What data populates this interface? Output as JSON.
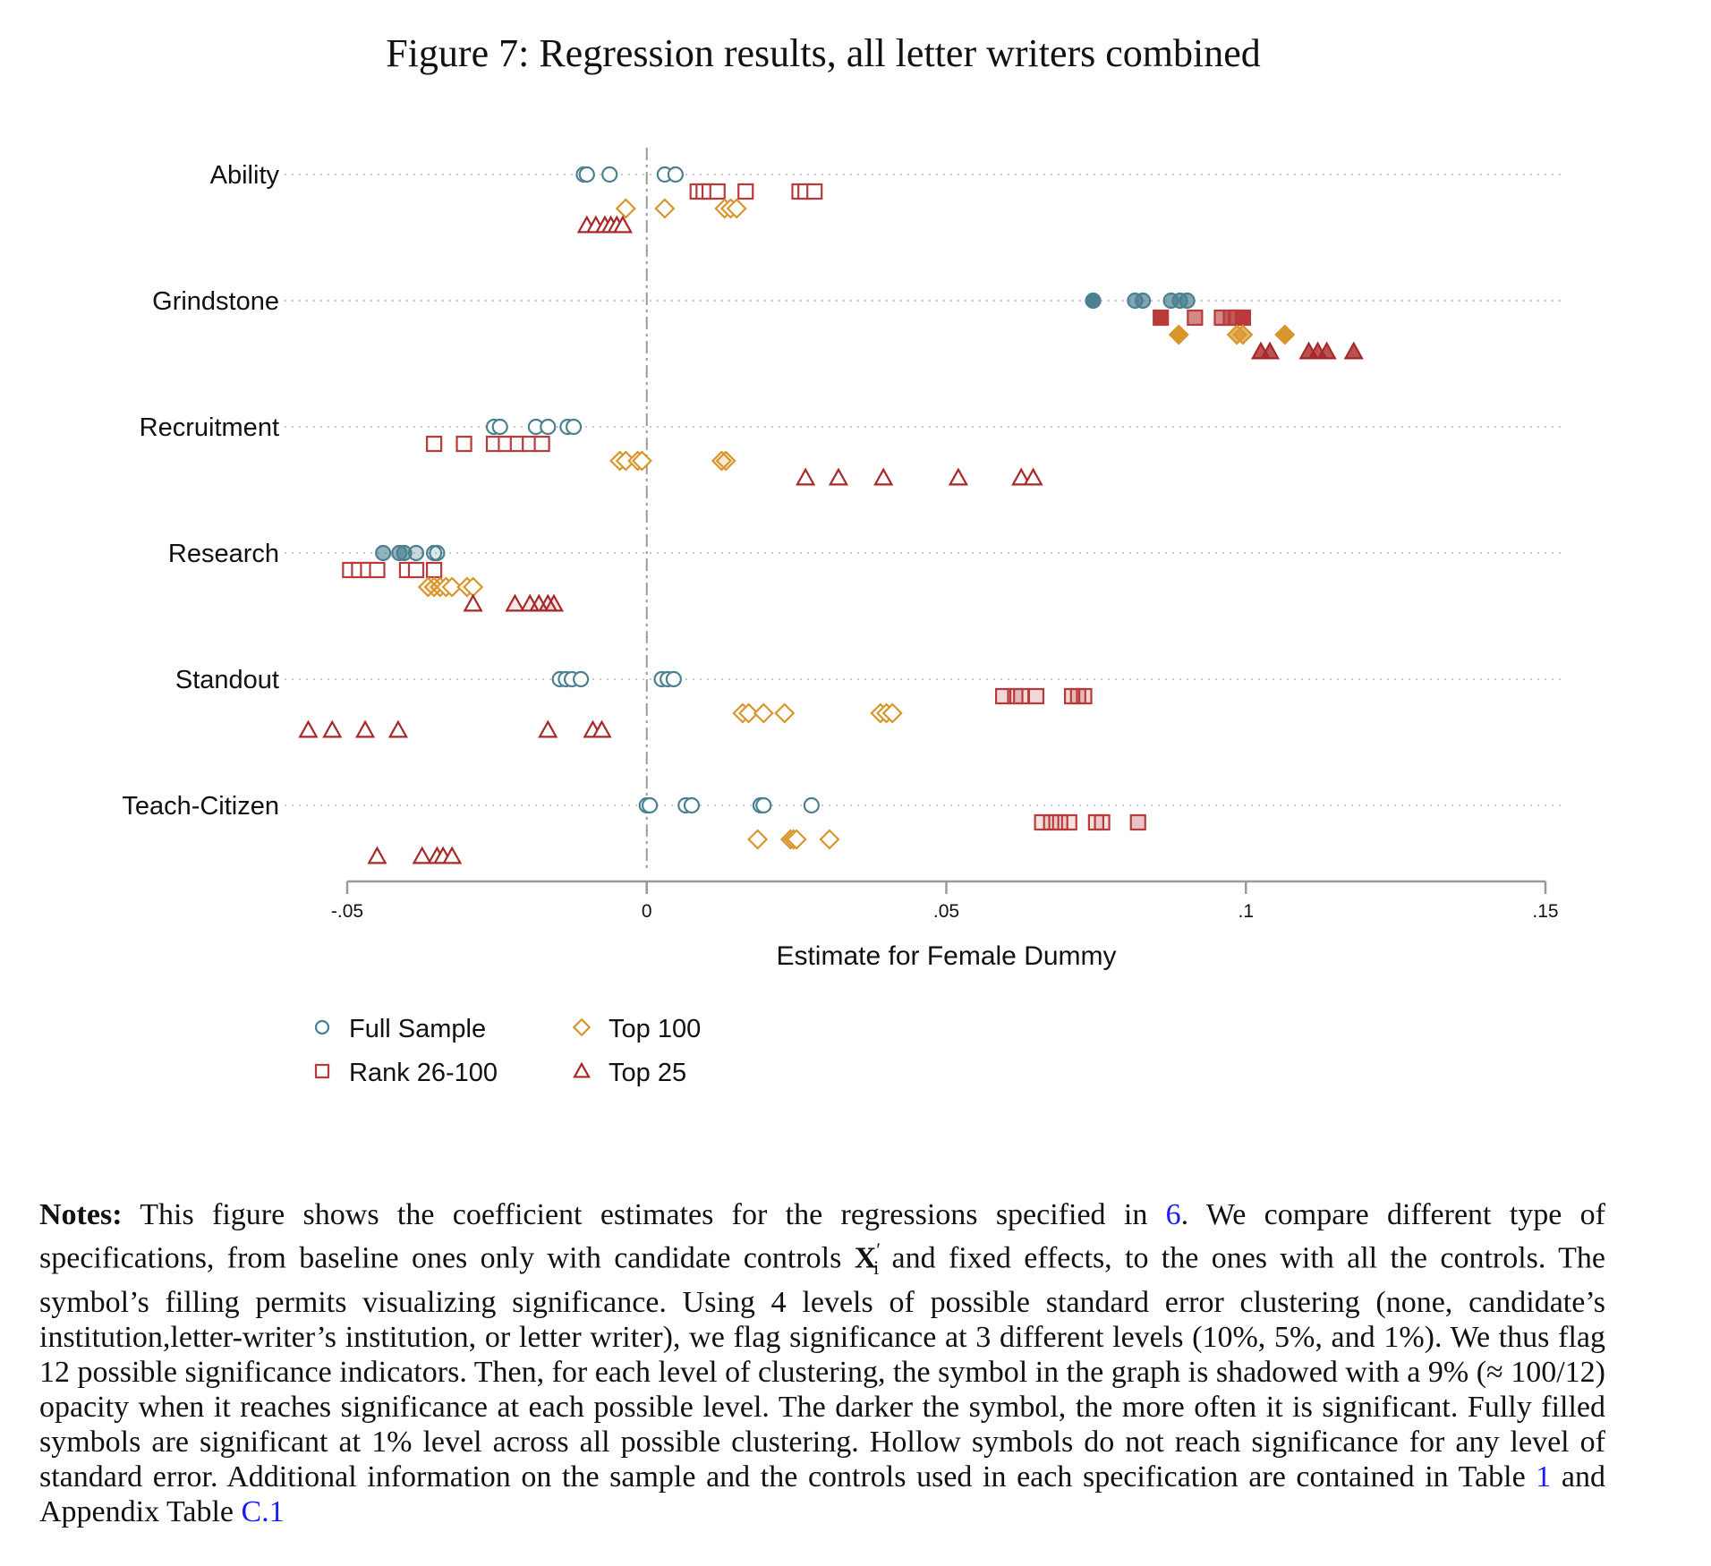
{
  "title": "Figure 7: Regression results, all letter writers combined",
  "chart_data": {
    "type": "scatter",
    "xlabel": "Estimate for Female Dummy",
    "xlim": [
      -0.05,
      0.15
    ],
    "xticks": [
      -0.05,
      0,
      0.05,
      0.1,
      0.15
    ],
    "xtick_labels": [
      "-.05",
      "0",
      ".05",
      ".1",
      ".15"
    ],
    "reference_line_x": 0,
    "grid": "dotted horizontal per category",
    "legend_position": "bottom-left",
    "categories": [
      "Ability",
      "Grindstone",
      "Recruitment",
      "Research",
      "Standout",
      "Teach-Citizen"
    ],
    "series": [
      {
        "name": "Full Sample",
        "marker": "circle",
        "color": "#4a8090",
        "values": {
          "Ability": [
            -0.0105,
            -0.01,
            -0.0062,
            0.003,
            0.0048
          ],
          "Grindstone": [
            0.0745,
            0.0815,
            0.0828,
            0.0875,
            0.089,
            0.0902
          ],
          "Recruitment": [
            -0.0255,
            -0.0245,
            -0.0185,
            -0.0165,
            -0.0132,
            -0.0122
          ],
          "Research": [
            -0.044,
            -0.0413,
            -0.0405,
            -0.0385,
            -0.0355,
            -0.035
          ],
          "Standout": [
            -0.0145,
            -0.0135,
            -0.0125,
            -0.011,
            0.0025,
            0.0035,
            0.0045
          ],
          "Teach-Citizen": [
            0.0,
            0.0005,
            0.0065,
            0.0075,
            0.019,
            0.0195,
            0.0275
          ]
        },
        "fill_alpha": {
          "Ability": [
            0,
            0,
            0,
            0,
            0
          ],
          "Grindstone": [
            1,
            0.7,
            0.7,
            0.7,
            0.7,
            0.7
          ],
          "Recruitment": [
            0,
            0,
            0,
            0,
            0,
            0
          ],
          "Research": [
            0.6,
            0.6,
            0.6,
            0.3,
            0.1,
            0.1
          ],
          "Standout": [
            0,
            0,
            0,
            0,
            0,
            0,
            0
          ],
          "Teach-Citizen": [
            0,
            0,
            0,
            0,
            0,
            0,
            0
          ]
        }
      },
      {
        "name": "Rank 26-100",
        "marker": "square",
        "color": "#b83a3a",
        "values": {
          "Ability": [
            0.0085,
            0.0095,
            0.0105,
            0.0118,
            0.0165,
            0.0255,
            0.0265,
            0.028
          ],
          "Grindstone": [
            0.0858,
            0.0915,
            0.096,
            0.0975,
            0.0985,
            0.0995
          ],
          "Recruitment": [
            -0.0355,
            -0.0305,
            -0.0255,
            -0.0235,
            -0.0215,
            -0.0195,
            -0.0175
          ],
          "Research": [
            -0.0495,
            -0.048,
            -0.0465,
            -0.045,
            -0.04,
            -0.0385,
            -0.0355
          ],
          "Standout": [
            0.0595,
            0.0615,
            0.0625,
            0.065,
            0.071,
            0.072,
            0.073
          ],
          "Teach-Citizen": [
            0.066,
            0.0675,
            0.069,
            0.0705,
            0.075,
            0.076,
            0.082
          ]
        },
        "fill_alpha": {
          "Ability": [
            0,
            0,
            0,
            0,
            0,
            0,
            0,
            0
          ],
          "Grindstone": [
            1,
            0.6,
            0.6,
            0.6,
            0.6,
            1
          ],
          "Recruitment": [
            0,
            0,
            0,
            0,
            0,
            0,
            0
          ],
          "Research": [
            0,
            0,
            0,
            0,
            0,
            0,
            0
          ],
          "Standout": [
            0.2,
            0.2,
            0.2,
            0.2,
            0.2,
            0.2,
            0.2
          ],
          "Teach-Citizen": [
            0.15,
            0.15,
            0.15,
            0.15,
            0.15,
            0.15,
            0.3
          ]
        }
      },
      {
        "name": "Top 100",
        "marker": "diamond",
        "color": "#d9952b",
        "values": {
          "Ability": [
            -0.0035,
            0.003,
            0.013,
            0.014,
            0.015
          ],
          "Grindstone": [
            0.0888,
            0.0985,
            0.0995,
            0.1065
          ],
          "Recruitment": [
            -0.0045,
            -0.0035,
            -0.0015,
            -0.0008,
            0.0125,
            0.0132
          ],
          "Research": [
            -0.0365,
            -0.0355,
            -0.0345,
            -0.0335,
            -0.0325,
            -0.03,
            -0.029
          ],
          "Standout": [
            0.016,
            0.017,
            0.0195,
            0.023,
            0.039,
            0.04,
            0.041
          ],
          "Teach-Citizen": [
            0.0185,
            0.024,
            0.0245,
            0.025,
            0.0305
          ]
        },
        "fill_alpha": {
          "Ability": [
            0,
            0,
            0,
            0,
            0
          ],
          "Grindstone": [
            1,
            0.7,
            0.7,
            1
          ],
          "Recruitment": [
            0,
            0,
            0,
            0,
            0.1,
            0.1
          ],
          "Research": [
            0.1,
            0.1,
            0.1,
            0,
            0,
            0,
            0
          ],
          "Standout": [
            0,
            0,
            0,
            0,
            0,
            0,
            0
          ],
          "Teach-Citizen": [
            0,
            0,
            0,
            0,
            0
          ]
        }
      },
      {
        "name": "Top 25",
        "marker": "triangle",
        "color": "#a82828",
        "values": {
          "Ability": [
            -0.01,
            -0.0085,
            -0.007,
            -0.006,
            -0.005,
            -0.004
          ],
          "Grindstone": [
            0.1025,
            0.104,
            0.1105,
            0.112,
            0.1135,
            0.118
          ],
          "Recruitment": [
            0.0265,
            0.032,
            0.0395,
            0.052,
            0.0625,
            0.0645
          ],
          "Research": [
            -0.029,
            -0.022,
            -0.0195,
            -0.018,
            -0.0165,
            -0.0155
          ],
          "Standout": [
            -0.0565,
            -0.0525,
            -0.047,
            -0.0415,
            -0.0165,
            -0.009,
            -0.0075
          ],
          "Teach-Citizen": [
            -0.045,
            -0.0375,
            -0.035,
            -0.034,
            -0.0325
          ]
        },
        "fill_alpha": {
          "Ability": [
            0,
            0,
            0,
            0,
            0,
            0
          ],
          "Grindstone": [
            0.8,
            0.8,
            0.8,
            0.8,
            0.8,
            0.8
          ],
          "Recruitment": [
            0,
            0,
            0,
            0,
            0,
            0
          ],
          "Research": [
            0,
            0.1,
            0.1,
            0.1,
            0.1,
            0.1
          ],
          "Standout": [
            0,
            0,
            0,
            0,
            0,
            0,
            0
          ],
          "Teach-Citizen": [
            0,
            0,
            0,
            0,
            0
          ]
        }
      }
    ]
  },
  "notes": {
    "label": "Notes:",
    "text_1": " This figure shows the coefficient estimates for the regressions specified in ",
    "ref_1": "6",
    "text_2": ". We compare different type of specifications, from baseline ones only with candidate controls ",
    "math_x": "X",
    "math_sub": "i",
    "math_sup": "′",
    "text_3": " and fixed effects, to the ones with all the controls. The symbol’s filling permits visualizing significance. Using 4 levels of possible standard error clustering (none, candidate’s institution,letter-writer’s institution, or letter writer), we flag significance at 3 different levels (10%, 5%, and 1%). We thus flag 12 possible significance indicators. Then, for each level of clustering, the symbol in the graph is shadowed with a 9% (≈ 100/12) opacity when it reaches significance at each possible level. The darker the symbol, the more often it is significant. Fully filled symbols are significant at 1% level across all possible clustering. Hollow symbols do not reach significance for any level of standard error. Additional information on the sample and the controls used in each specification are contained in Table ",
    "ref_2": "1",
    "text_4": " and Appendix Table ",
    "ref_3": "C.1"
  }
}
